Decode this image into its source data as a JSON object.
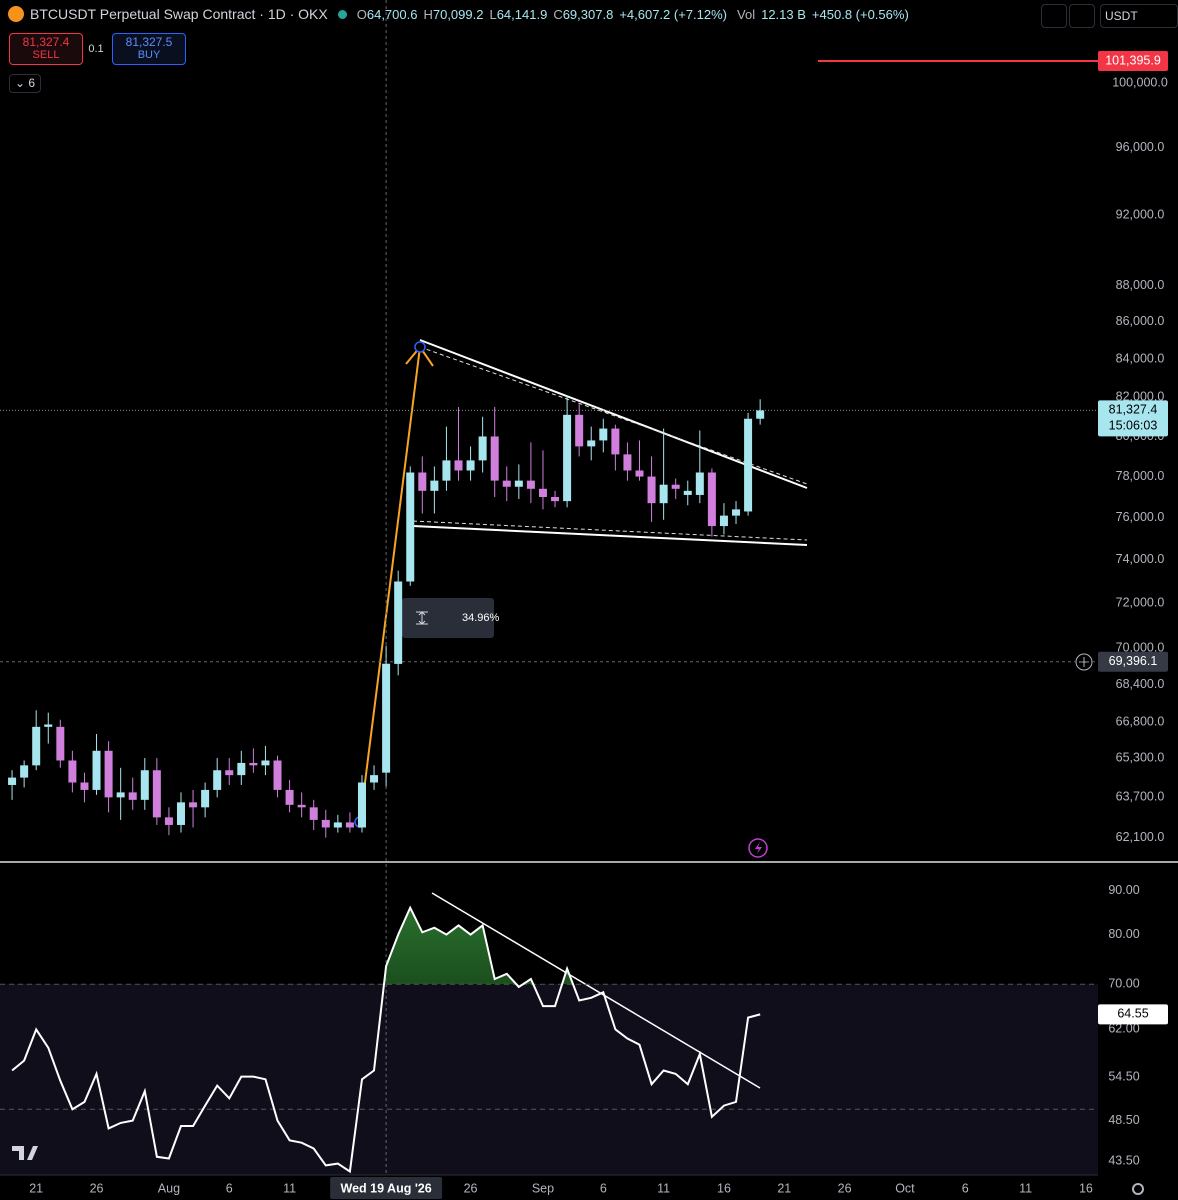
{
  "header": {
    "symbol": "BTCUSDT Perpetual Swap Contract · 1D · OKX",
    "ohlc": [
      {
        "label": "O",
        "value": "64,700.6"
      },
      {
        "label": "H",
        "value": "70,099.2"
      },
      {
        "label": "L",
        "value": "64,141.9"
      },
      {
        "label": "C",
        "value": "69,307.8"
      }
    ],
    "change": "+4,607.2 (+7.12%)",
    "volume_label": "Vol",
    "volume": "12.13 B",
    "volume_change": "+450.8 (+0.56%)",
    "sell_price": "81,327.4",
    "sell_label": "SELL",
    "spread": "0.1",
    "buy_price": "81,327.5",
    "buy_label": "BUY",
    "indicators_count": "6",
    "currency": "USDT"
  },
  "chart_data": [
    {
      "type": "candlestick",
      "log": true,
      "up_color": "#a8e6ef",
      "down_color": "#d07fdd",
      "x": [
        "2026-07-19",
        "2026-07-20",
        "2026-07-21",
        "2026-07-22",
        "2026-07-23",
        "2026-07-24",
        "2026-07-25",
        "2026-07-26",
        "2026-07-27",
        "2026-07-28",
        "2026-07-29",
        "2026-07-30",
        "2026-07-31",
        "2026-08-01",
        "2026-08-02",
        "2026-08-03",
        "2026-08-04",
        "2026-08-05",
        "2026-08-06",
        "2026-08-07",
        "2026-08-08",
        "2026-08-09",
        "2026-08-10",
        "2026-08-11",
        "2026-08-12",
        "2026-08-13",
        "2026-08-14",
        "2026-08-15",
        "2026-08-16",
        "2026-08-17",
        "2026-08-18",
        "2026-08-19",
        "2026-08-20",
        "2026-08-21",
        "2026-08-22",
        "2026-08-23",
        "2026-08-24",
        "2026-08-25",
        "2026-08-26",
        "2026-08-27",
        "2026-08-28",
        "2026-08-29",
        "2026-08-30",
        "2026-08-31",
        "2026-09-01",
        "2026-09-02",
        "2026-09-03",
        "2026-09-04",
        "2026-09-05",
        "2026-09-06",
        "2026-09-07",
        "2026-09-08",
        "2026-09-09",
        "2026-09-10",
        "2026-09-11",
        "2026-09-12",
        "2026-09-13",
        "2026-09-14",
        "2026-09-15",
        "2026-09-16",
        "2026-09-17",
        "2026-09-18",
        "2026-09-19"
      ],
      "open": [
        64200,
        64500,
        65000,
        66600,
        66600,
        65200,
        64300,
        64000,
        65600,
        63700,
        63900,
        63600,
        64800,
        62900,
        62600,
        63500,
        63300,
        64000,
        64800,
        64600,
        65100,
        65000,
        65200,
        64000,
        63400,
        63300,
        62800,
        62500,
        62700,
        62500,
        64300,
        64700.6,
        69300,
        73000,
        78200,
        77300,
        77800,
        78800,
        78300,
        78800,
        80000,
        77800,
        77500,
        77800,
        77400,
        77000,
        76800,
        81100,
        79500,
        79800,
        80400,
        79100,
        78300,
        78000,
        76700,
        77600,
        77100,
        77100,
        78200,
        75600,
        76100,
        76300,
        80900
      ],
      "high": [
        64800,
        65200,
        67300,
        67200,
        66900,
        65600,
        64700,
        66300,
        66000,
        64900,
        64500,
        65300,
        65300,
        63300,
        63900,
        64000,
        64300,
        65300,
        65300,
        65600,
        65700,
        65800,
        65400,
        64400,
        63900,
        63600,
        63200,
        63000,
        63100,
        64600,
        65000,
        70099.2,
        73500,
        78500,
        79000,
        78500,
        80500,
        81500,
        79500,
        81000,
        81500,
        78500,
        78600,
        79700,
        79300,
        77300,
        82100,
        81700,
        80500,
        80900,
        80600,
        79700,
        79800,
        79000,
        80400,
        77900,
        77800,
        80300,
        78400,
        76700,
        76800,
        81200,
        81900
      ],
      "low": [
        63600,
        64100,
        64800,
        65900,
        64900,
        63900,
        63500,
        63800,
        63100,
        62800,
        63200,
        63200,
        62600,
        62200,
        62300,
        62500,
        62900,
        63700,
        64200,
        64200,
        64700,
        64600,
        63700,
        63100,
        62900,
        62400,
        62100,
        62300,
        62300,
        62300,
        64000,
        64141.9,
        68800,
        72800,
        76200,
        76200,
        77300,
        77800,
        77800,
        78200,
        77000,
        76800,
        76900,
        76700,
        76400,
        76500,
        76500,
        79000,
        78800,
        79200,
        78300,
        77800,
        77800,
        75800,
        75900,
        76900,
        76600,
        76700,
        75100,
        75200,
        75700,
        76100,
        80600
      ],
      "close": [
        64500,
        65000,
        66600,
        66700,
        65200,
        64300,
        64000,
        65600,
        63700,
        63900,
        63600,
        64800,
        62900,
        62600,
        63500,
        63300,
        64000,
        64800,
        64600,
        65100,
        65000,
        65200,
        64000,
        63400,
        63300,
        62800,
        62500,
        62700,
        62500,
        64300,
        64600,
        69307.8,
        73000,
        78200,
        77300,
        77800,
        78800,
        78300,
        78800,
        80000,
        77800,
        77500,
        77800,
        77400,
        77000,
        76800,
        81100,
        79500,
        79800,
        80400,
        79100,
        78300,
        78000,
        76700,
        77600,
        77400,
        77300,
        78200,
        75600,
        76100,
        76400,
        80900,
        81327.4
      ],
      "xlim": [
        "2026-07-18",
        "2026-10-17"
      ],
      "ylim": [
        61230,
        105380
      ],
      "yticks": [
        {
          "value": 100000,
          "label": "100,000.0"
        },
        {
          "value": 96000,
          "label": "96,000.0"
        },
        {
          "value": 92000,
          "label": "92,000.0"
        },
        {
          "value": 88000,
          "label": "88,000.0"
        },
        {
          "value": 86000,
          "label": "86,000.0"
        },
        {
          "value": 84000,
          "label": "84,000.0"
        },
        {
          "value": 82000,
          "label": "82,000.0"
        },
        {
          "value": 80000,
          "label": "80,000.0"
        },
        {
          "value": 78000,
          "label": "78,000.0"
        },
        {
          "value": 76000,
          "label": "76,000.0"
        },
        {
          "value": 74000,
          "label": "74,000.0"
        },
        {
          "value": 72000,
          "label": "72,000.0"
        },
        {
          "value": 70000,
          "label": "70,000.0"
        },
        {
          "value": 68400,
          "label": "68,400.0"
        },
        {
          "value": 66800,
          "label": "66,800.0"
        },
        {
          "value": 65300,
          "label": "65,300.0"
        },
        {
          "value": 63700,
          "label": "63,700.0"
        },
        {
          "value": 62100,
          "label": "62,100.0"
        }
      ],
      "xticks": [
        {
          "value": "2026-07-21",
          "label": "21"
        },
        {
          "value": "2026-07-26",
          "label": "26"
        },
        {
          "value": "2026-08-01",
          "label": "Aug"
        },
        {
          "value": "2026-08-06",
          "label": "6"
        },
        {
          "value": "2026-08-11",
          "label": "11"
        },
        {
          "value": "2026-08-26",
          "label": "26"
        },
        {
          "value": "2026-09-01",
          "label": "Sep"
        },
        {
          "value": "2026-09-06",
          "label": "6"
        },
        {
          "value": "2026-09-11",
          "label": "11"
        },
        {
          "value": "2026-09-16",
          "label": "16"
        },
        {
          "value": "2026-09-21",
          "label": "21"
        },
        {
          "value": "2026-09-26",
          "label": "26"
        },
        {
          "value": "2026-10-01",
          "label": "Oct"
        },
        {
          "value": "2026-10-06",
          "label": "6"
        },
        {
          "value": "2026-10-11",
          "label": "11"
        },
        {
          "value": "2026-10-16",
          "label": "16"
        }
      ],
      "alert_line": {
        "value": 101395.9,
        "label": "101,395.9"
      },
      "last_price": {
        "value": 81327.4,
        "label": "81,327.4",
        "countdown": "15:06:03"
      },
      "crosshair": {
        "x": "2026-08-19",
        "x_label": "Wed 19 Aug '26",
        "y": 69396.1,
        "y_label": "69,396.1"
      },
      "measure_label": "34.96%"
    },
    {
      "type": "line",
      "log": true,
      "color": "#ffffff",
      "values": [
        55.5,
        57,
        62,
        59,
        54,
        50,
        51,
        55,
        47.5,
        48.2,
        48.5,
        52.5,
        44,
        43.8,
        47.8,
        47.8,
        50.5,
        53.3,
        51.5,
        54.6,
        54.6,
        54.2,
        48.5,
        46,
        45.7,
        45,
        43,
        43.2,
        42.3,
        54.2,
        55.5,
        73.5,
        80,
        86,
        80.5,
        81.5,
        80,
        82,
        80,
        82,
        71,
        72,
        69.5,
        71,
        66,
        66,
        73,
        67,
        67.5,
        68.5,
        62,
        60.5,
        59.5,
        53.5,
        55.5,
        55,
        53.5,
        58,
        49,
        50.5,
        51,
        64,
        64.55
      ],
      "ylim": [
        41.9,
        97.0
      ],
      "yticks": [
        {
          "value": 90,
          "label": "90.00"
        },
        {
          "value": 80,
          "label": "80.00"
        },
        {
          "value": 70,
          "label": "70.00"
        },
        {
          "value": 62,
          "label": "62.00"
        },
        {
          "value": 54.5,
          "label": "54.50"
        },
        {
          "value": 48.5,
          "label": "48.50"
        },
        {
          "value": 43.5,
          "label": "43.50"
        }
      ],
      "levels": [
        70,
        50
      ],
      "last_label": {
        "value": 64.55,
        "label": "64.55"
      }
    }
  ]
}
